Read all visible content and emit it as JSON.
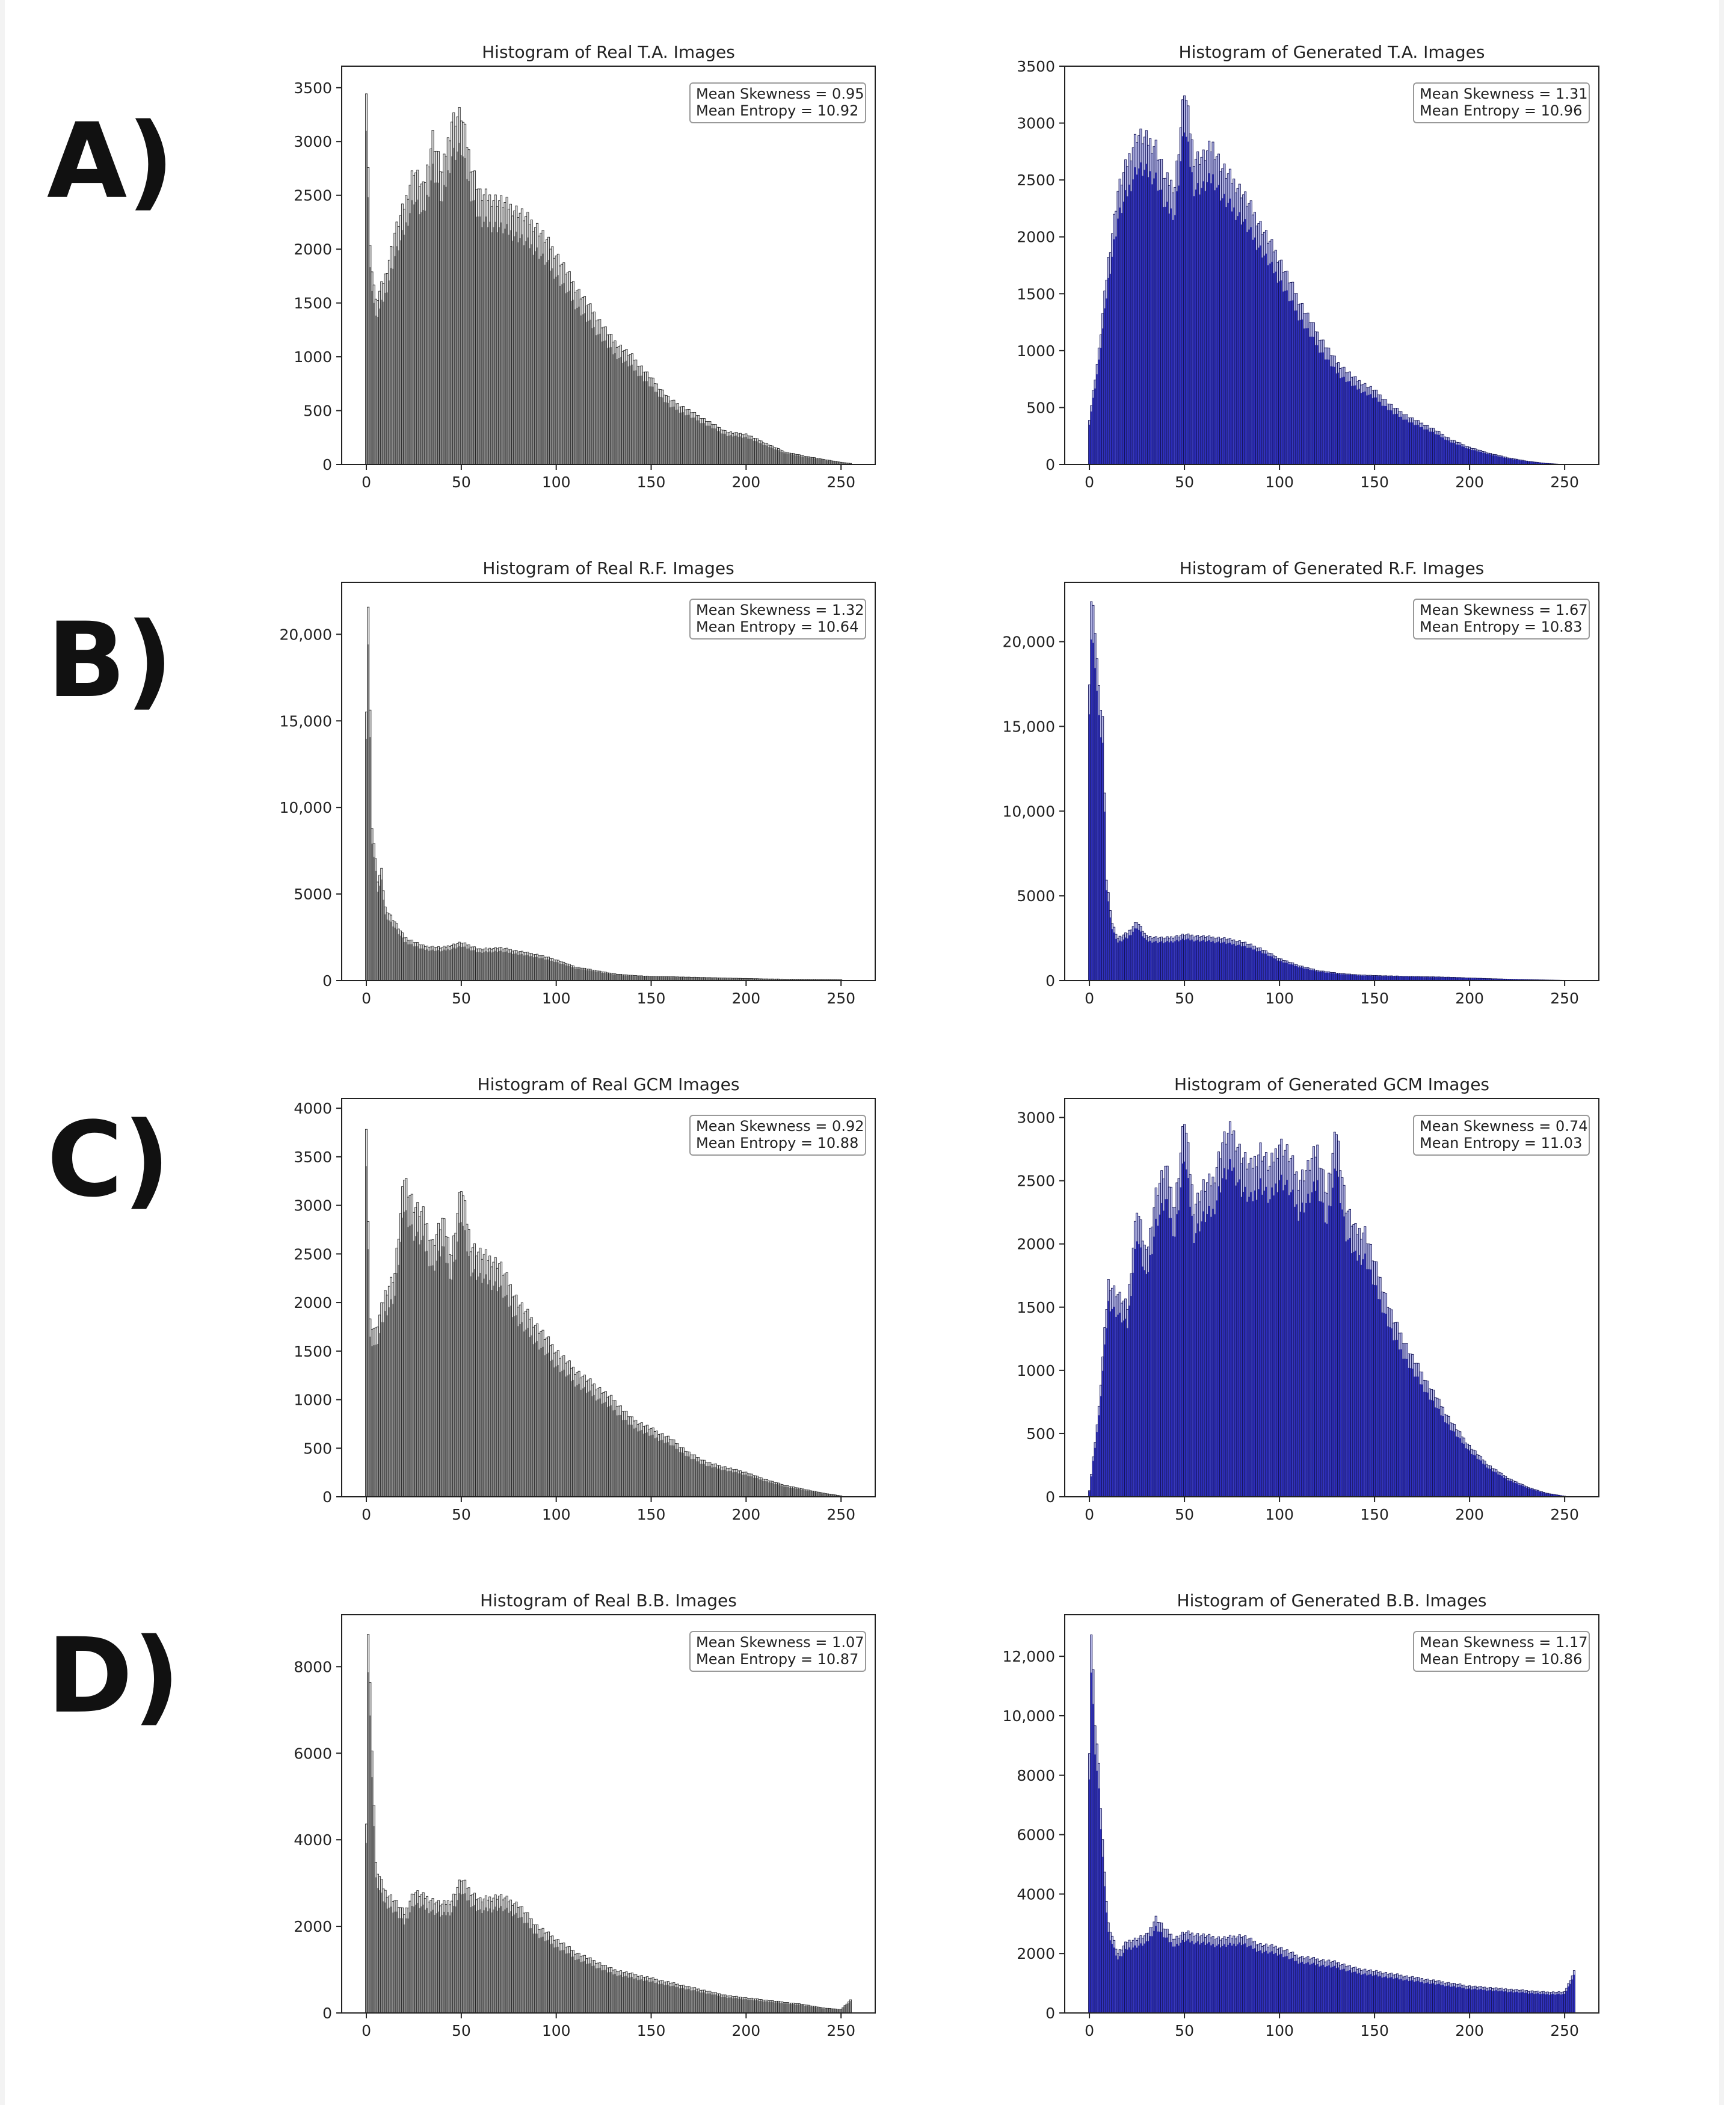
{
  "figure": {
    "row_labels": [
      "A)",
      "B)",
      "C)",
      "D)"
    ]
  },
  "colors": {
    "real_fill": "#c8c8c8",
    "real_edge": "#1a1a1a",
    "generated_fill": "#9ea0e0",
    "generated_dense": "#1414b4",
    "generated_edge": "#06064a"
  },
  "chart_data": [
    {
      "type": "bar",
      "subtype": "histogram",
      "panel": "A-left",
      "title": "Histogram of Real T.A. Images",
      "style": "real",
      "annotation": [
        "Mean Skewness = 0.95",
        "Mean Entropy = 10.92"
      ],
      "xlim": [
        -13,
        268
      ],
      "ylim": [
        0,
        3700
      ],
      "xticks": [
        0,
        50,
        100,
        150,
        200,
        250
      ],
      "yticks": [
        0,
        500,
        1000,
        1500,
        2000,
        2500,
        3000,
        3500
      ],
      "ytick_labels": [
        "0",
        "500",
        "1000",
        "1500",
        "2000",
        "2500",
        "3000",
        "3500"
      ],
      "x": [
        0,
        2,
        5,
        10,
        15,
        20,
        25,
        30,
        35,
        40,
        45,
        50,
        55,
        60,
        70,
        80,
        90,
        100,
        110,
        120,
        130,
        140,
        150,
        160,
        170,
        180,
        190,
        200,
        210,
        220,
        230,
        240,
        250,
        255
      ],
      "values": [
        3550,
        2000,
        1500,
        1750,
        2150,
        2400,
        2750,
        2550,
        3050,
        2700,
        3200,
        3250,
        2800,
        2500,
        2450,
        2350,
        2200,
        1950,
        1650,
        1400,
        1150,
        1000,
        800,
        600,
        500,
        400,
        300,
        280,
        200,
        120,
        80,
        50,
        20,
        10
      ]
    },
    {
      "type": "bar",
      "subtype": "histogram",
      "panel": "A-right",
      "title": "Histogram of Generated T.A. Images",
      "style": "generated",
      "annotation": [
        "Mean Skewness = 1.31",
        "Mean Entropy = 10.96"
      ],
      "xlim": [
        -13,
        268
      ],
      "ylim": [
        0,
        3500
      ],
      "xticks": [
        0,
        50,
        100,
        150,
        200,
        250
      ],
      "yticks": [
        0,
        500,
        1000,
        1500,
        2000,
        2500,
        3000,
        3500
      ],
      "ytick_labels": [
        "0",
        "500",
        "1000",
        "1500",
        "2000",
        "2500",
        "3000",
        "3500"
      ],
      "x": [
        0,
        5,
        10,
        15,
        20,
        25,
        30,
        35,
        40,
        45,
        50,
        55,
        60,
        65,
        70,
        75,
        80,
        90,
        100,
        110,
        120,
        130,
        140,
        150,
        160,
        170,
        180,
        190,
        200,
        210,
        220,
        230,
        240,
        250
      ],
      "values": [
        400,
        1000,
        1800,
        2400,
        2650,
        2900,
        2850,
        2800,
        2500,
        2450,
        3300,
        2700,
        2700,
        2800,
        2600,
        2500,
        2400,
        2100,
        1800,
        1450,
        1150,
        900,
        750,
        650,
        500,
        400,
        320,
        220,
        150,
        100,
        60,
        30,
        10,
        0
      ]
    },
    {
      "type": "bar",
      "subtype": "histogram",
      "panel": "B-left",
      "title": "Histogram of Real R.F. Images",
      "style": "real",
      "annotation": [
        "Mean Skewness = 1.32",
        "Mean Entropy = 10.64"
      ],
      "xlim": [
        -13,
        268
      ],
      "ylim": [
        0,
        23000
      ],
      "xticks": [
        0,
        50,
        100,
        150,
        200,
        250
      ],
      "yticks": [
        0,
        5000,
        10000,
        15000,
        20000
      ],
      "ytick_labels": [
        "0",
        "5000",
        "10,000",
        "15,000",
        "20,000"
      ],
      "x": [
        0,
        1,
        3,
        6,
        8,
        10,
        15,
        20,
        30,
        40,
        50,
        60,
        70,
        80,
        90,
        100,
        110,
        120,
        130,
        140,
        150,
        170,
        190,
        210,
        230,
        250
      ],
      "values": [
        16000,
        21700,
        9000,
        5800,
        6300,
        4200,
        3400,
        2500,
        2000,
        1900,
        2200,
        1800,
        1900,
        1700,
        1500,
        1200,
        800,
        600,
        400,
        300,
        250,
        200,
        150,
        100,
        80,
        50
      ]
    },
    {
      "type": "bar",
      "subtype": "histogram",
      "panel": "B-right",
      "title": "Histogram of Generated R.F. Images",
      "style": "generated",
      "annotation": [
        "Mean Skewness = 1.67",
        "Mean Entropy = 10.83"
      ],
      "xlim": [
        -13,
        268
      ],
      "ylim": [
        0,
        23500
      ],
      "xticks": [
        0,
        50,
        100,
        150,
        200,
        250
      ],
      "yticks": [
        0,
        5000,
        10000,
        15000,
        20000
      ],
      "ytick_labels": [
        "0",
        "5000",
        "10,000",
        "15,000",
        "20,000"
      ],
      "x": [
        0,
        1,
        3,
        5,
        7,
        9,
        12,
        15,
        20,
        25,
        30,
        40,
        50,
        60,
        70,
        80,
        90,
        100,
        110,
        120,
        130,
        140,
        150,
        170,
        190,
        210,
        230,
        250
      ],
      "values": [
        18000,
        22500,
        21000,
        17000,
        15500,
        6000,
        3400,
        2500,
        2800,
        3500,
        2600,
        2500,
        2700,
        2600,
        2500,
        2300,
        1900,
        1300,
        900,
        600,
        450,
        350,
        300,
        250,
        200,
        120,
        60,
        20
      ]
    },
    {
      "type": "bar",
      "subtype": "histogram",
      "panel": "C-left",
      "title": "Histogram of Real GCM Images",
      "style": "real",
      "annotation": [
        "Mean Skewness = 0.92",
        "Mean Entropy = 10.88"
      ],
      "xlim": [
        -13,
        268
      ],
      "ylim": [
        0,
        4100
      ],
      "xticks": [
        0,
        50,
        100,
        150,
        200,
        250
      ],
      "yticks": [
        0,
        500,
        1000,
        1500,
        2000,
        2500,
        3000,
        3500,
        4000
      ],
      "ytick_labels": [
        "0",
        "500",
        "1000",
        "1500",
        "2000",
        "2500",
        "3000",
        "3500",
        "4000"
      ],
      "x": [
        0,
        2,
        5,
        10,
        15,
        20,
        25,
        30,
        35,
        40,
        45,
        50,
        55,
        60,
        70,
        80,
        90,
        100,
        110,
        120,
        130,
        140,
        150,
        160,
        170,
        180,
        190,
        200,
        210,
        220,
        230,
        240,
        250
      ],
      "values": [
        3900,
        1800,
        1700,
        2100,
        2300,
        3300,
        3000,
        2900,
        2600,
        2850,
        2500,
        3200,
        2600,
        2500,
        2400,
        2000,
        1750,
        1500,
        1300,
        1150,
        1000,
        800,
        700,
        600,
        450,
        350,
        300,
        250,
        180,
        120,
        80,
        40,
        10
      ]
    },
    {
      "type": "bar",
      "subtype": "histogram",
      "panel": "C-right",
      "title": "Histogram of Generated GCM Images",
      "style": "generated",
      "annotation": [
        "Mean Skewness = 0.74",
        "Mean Entropy = 11.03"
      ],
      "xlim": [
        -13,
        268
      ],
      "ylim": [
        0,
        3150
      ],
      "xticks": [
        0,
        50,
        100,
        150,
        200,
        250
      ],
      "yticks": [
        0,
        500,
        1000,
        1500,
        2000,
        2500,
        3000
      ],
      "ytick_labels": [
        "0",
        "500",
        "1000",
        "1500",
        "2000",
        "2500",
        "3000"
      ],
      "x": [
        0,
        5,
        10,
        15,
        20,
        25,
        30,
        35,
        40,
        45,
        50,
        55,
        60,
        65,
        70,
        75,
        80,
        85,
        90,
        95,
        100,
        105,
        110,
        115,
        120,
        125,
        130,
        135,
        140,
        145,
        150,
        160,
        170,
        180,
        190,
        200,
        210,
        220,
        230,
        240,
        250
      ],
      "values": [
        50,
        700,
        1700,
        1600,
        1500,
        2300,
        1900,
        2400,
        2600,
        2300,
        3000,
        2300,
        2450,
        2500,
        2800,
        2900,
        2700,
        2600,
        2750,
        2600,
        2800,
        2700,
        2500,
        2600,
        2750,
        2400,
        2900,
        2300,
        2100,
        2100,
        1850,
        1400,
        1100,
        850,
        600,
        400,
        250,
        150,
        80,
        30,
        5
      ]
    },
    {
      "type": "bar",
      "subtype": "histogram",
      "panel": "D-left",
      "title": "Histogram of Real B.B. Images",
      "style": "real",
      "annotation": [
        "Mean Skewness = 1.07",
        "Mean Entropy = 10.87"
      ],
      "xlim": [
        -13,
        268
      ],
      "ylim": [
        0,
        9200
      ],
      "xticks": [
        0,
        50,
        100,
        150,
        200,
        250
      ],
      "yticks": [
        0,
        2000,
        4000,
        6000,
        8000
      ],
      "ytick_labels": [
        "0",
        "2000",
        "4000",
        "6000",
        "8000"
      ],
      "x": [
        0,
        1,
        3,
        5,
        8,
        10,
        15,
        20,
        25,
        30,
        35,
        40,
        45,
        50,
        55,
        60,
        70,
        80,
        90,
        100,
        110,
        120,
        130,
        140,
        150,
        160,
        170,
        180,
        190,
        200,
        210,
        220,
        230,
        240,
        250,
        255
      ],
      "values": [
        4500,
        8800,
        6200,
        3400,
        3000,
        2800,
        2600,
        2300,
        2800,
        2700,
        2600,
        2500,
        2600,
        3100,
        2800,
        2600,
        2700,
        2500,
        2000,
        1700,
        1400,
        1200,
        1000,
        900,
        800,
        700,
        600,
        500,
        400,
        350,
        300,
        250,
        200,
        120,
        80,
        300
      ]
    },
    {
      "type": "bar",
      "subtype": "histogram",
      "panel": "D-right",
      "title": "Histogram of Generated B.B. Images",
      "style": "generated",
      "annotation": [
        "Mean Skewness = 1.17",
        "Mean Entropy = 10.86"
      ],
      "xlim": [
        -13,
        268
      ],
      "ylim": [
        0,
        13400
      ],
      "xticks": [
        0,
        50,
        100,
        150,
        200,
        250
      ],
      "yticks": [
        0,
        2000,
        4000,
        6000,
        8000,
        10000,
        12000
      ],
      "ytick_labels": [
        "0",
        "2000",
        "4000",
        "6000",
        "8000",
        "10,000",
        "12,000"
      ],
      "x": [
        0,
        1,
        3,
        5,
        8,
        10,
        15,
        20,
        25,
        30,
        35,
        40,
        45,
        50,
        60,
        70,
        80,
        90,
        100,
        110,
        120,
        130,
        140,
        150,
        160,
        170,
        180,
        190,
        200,
        210,
        220,
        230,
        240,
        250,
        255
      ],
      "values": [
        9000,
        12800,
        9900,
        8200,
        4600,
        3000,
        2000,
        2400,
        2500,
        2600,
        3200,
        2800,
        2500,
        2700,
        2600,
        2500,
        2600,
        2300,
        2200,
        1900,
        1800,
        1700,
        1500,
        1400,
        1300,
        1200,
        1100,
        1000,
        900,
        850,
        800,
        750,
        700,
        700,
        1400
      ]
    }
  ]
}
